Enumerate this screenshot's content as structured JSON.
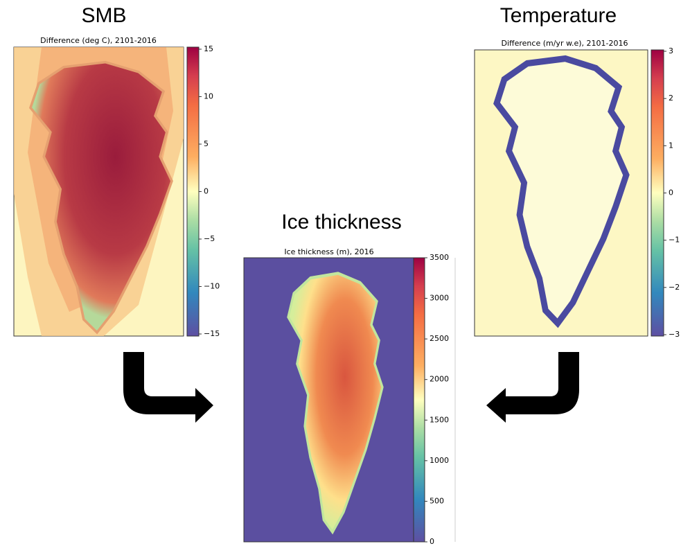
{
  "panels": [
    {
      "heading": "SMB",
      "title": "Difference (deg C), 2101-2016",
      "colorbar": {
        "lim": [
          -15,
          15
        ],
        "ticks": [
          {
            "value": -15,
            "label": "−15"
          },
          {
            "value": -10,
            "label": "−10"
          },
          {
            "value": -5,
            "label": "−5"
          },
          0,
          5,
          10,
          15
        ]
      }
    },
    {
      "heading": "Ice thickness",
      "title": "Ice thickness (m), 2016",
      "colorbar": {
        "lim": [
          0,
          3500
        ],
        "ticks": [
          0,
          500,
          1000,
          1500,
          2000,
          2500,
          3000,
          3500
        ]
      }
    },
    {
      "heading": "Temperature",
      "title": "Difference (m/yr w.e), 2101-2016",
      "colorbar": {
        "lim": [
          -3,
          3
        ],
        "ticks": [
          {
            "value": -3,
            "label": "−3"
          },
          {
            "value": -2,
            "label": "−2"
          },
          {
            "value": -1,
            "label": "−1"
          },
          0,
          1,
          2,
          3
        ]
      }
    }
  ]
}
